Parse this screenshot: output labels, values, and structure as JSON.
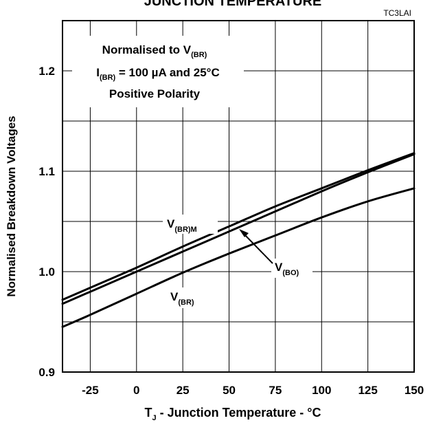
{
  "chart_data": {
    "type": "line",
    "title": "JUNCTION TEMPERATURE",
    "ref_code": "TC3LAI",
    "xlabel": {
      "main": "T",
      "sub": "J",
      "rest": " - Junction Temperature - °C"
    },
    "ylabel": "Normalised Breakdown Voltages",
    "xlim": [
      -40,
      150
    ],
    "ylim": [
      0.9,
      1.25
    ],
    "x_ticks": [
      -25,
      0,
      25,
      50,
      75,
      100,
      125,
      150
    ],
    "x_tick_labels": [
      "-25",
      "0",
      "25",
      "50",
      "75",
      "100",
      "125",
      "150"
    ],
    "y_ticks": [
      0.9,
      1.0,
      1.1,
      1.2
    ],
    "y_tick_labels": [
      "0.9",
      "1.0",
      "1.1",
      "1.2"
    ],
    "grid": true,
    "annotations": {
      "line1": {
        "main": "Normalised to V",
        "sub": "(BR)"
      },
      "line2": {
        "main": "I",
        "sub": "(BR)",
        "rest": " = 100 µA and 25°C"
      },
      "line3": "Positive Polarity"
    },
    "series": [
      {
        "name": "V(BR)M",
        "label_main": "V",
        "label_sub": "(BR)M",
        "x": [
          -40,
          -25,
          0,
          25,
          50,
          75,
          100,
          125,
          150
        ],
        "y": [
          0.972,
          0.984,
          1.004,
          1.025,
          1.045,
          1.065,
          1.083,
          1.101,
          1.118
        ]
      },
      {
        "name": "V(BO)",
        "label_main": "V",
        "label_sub": "(BO)",
        "x": [
          -40,
          -25,
          0,
          25,
          50,
          75,
          100,
          125,
          150
        ],
        "y": [
          0.968,
          0.98,
          1.0,
          1.02,
          1.04,
          1.06,
          1.08,
          1.099,
          1.117
        ]
      },
      {
        "name": "V(BR)",
        "label_main": "V",
        "label_sub": "(BR)",
        "x": [
          -40,
          -25,
          0,
          25,
          50,
          75,
          100,
          125,
          150
        ],
        "y": [
          0.945,
          0.957,
          0.978,
          0.999,
          1.018,
          1.036,
          1.054,
          1.07,
          1.083
        ]
      }
    ]
  }
}
